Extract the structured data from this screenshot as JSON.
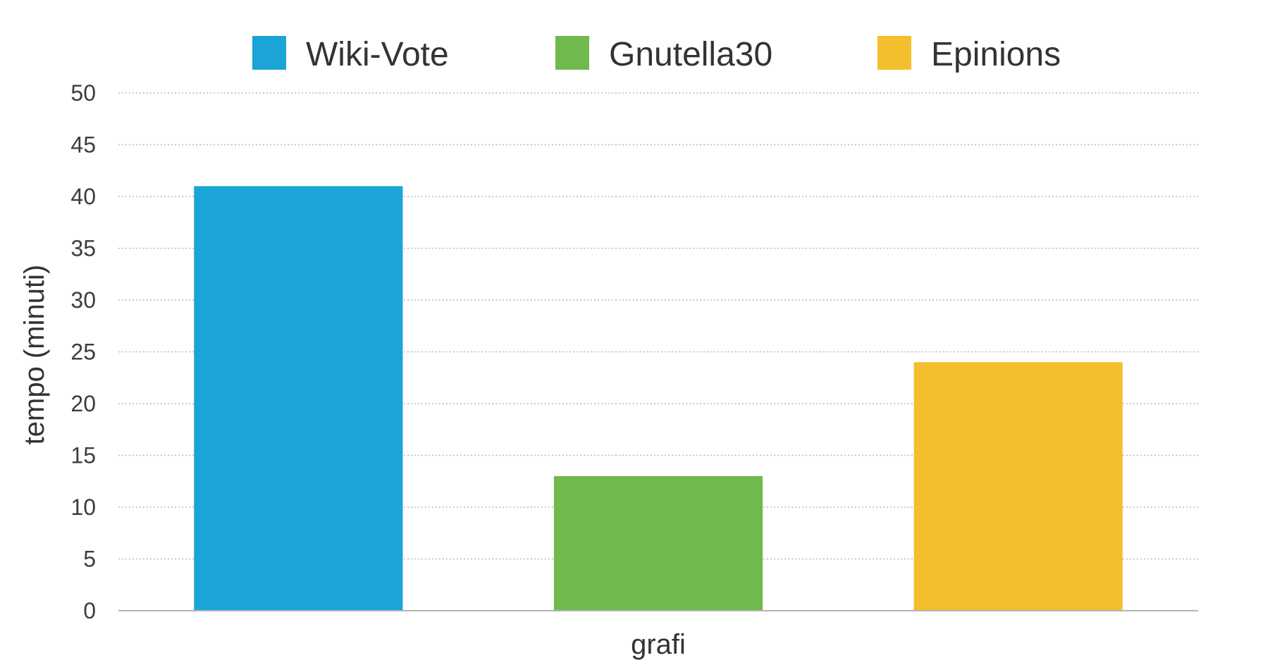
{
  "chart_data": {
    "type": "bar",
    "categories": [
      "grafi"
    ],
    "series": [
      {
        "name": "Wiki-Vote",
        "values": [
          41
        ],
        "color": "#1BA4D6"
      },
      {
        "name": "Gnutella30",
        "values": [
          13
        ],
        "color": "#70B94D"
      },
      {
        "name": "Epinions",
        "values": [
          24
        ],
        "color": "#F4BF2E"
      }
    ],
    "xlabel": "grafi",
    "ylabel": "tempo (minuti)",
    "ylim": [
      0,
      50
    ],
    "yticks": [
      0,
      5,
      10,
      15,
      20,
      25,
      30,
      35,
      40,
      45,
      50
    ],
    "grid": true,
    "legend": "top-center"
  }
}
